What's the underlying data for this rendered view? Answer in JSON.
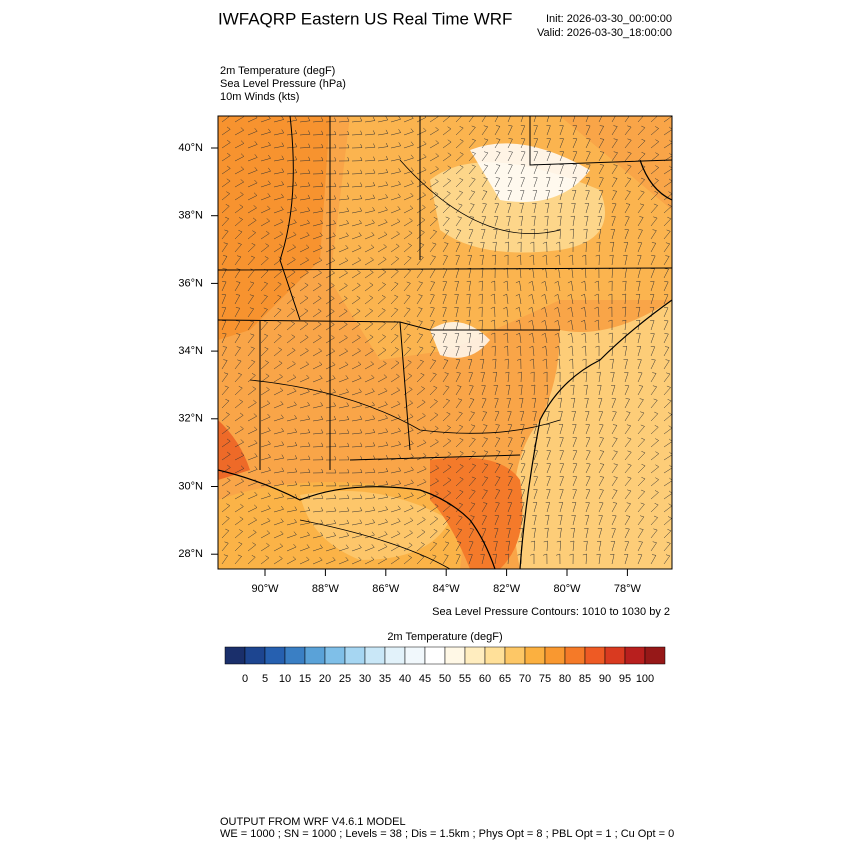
{
  "header": {
    "title": "IWFAQRP Eastern US Real Time WRF",
    "init": "Init: 2026-03-30_00:00:00",
    "valid": "Valid: 2026-03-30_18:00:00"
  },
  "fields": [
    "2m Temperature   (degF)",
    "Sea Level Pressure   (hPa)",
    "10m Winds   (kts)"
  ],
  "map": {
    "lat_labels": [
      "40°N",
      "38°N",
      "36°N",
      "34°N",
      "32°N",
      "30°N",
      "28°N"
    ],
    "lon_labels": [
      "90°W",
      "88°W",
      "86°W",
      "84°W",
      "82°W",
      "80°W",
      "78°W"
    ],
    "contour_note": "Sea Level Pressure Contours: 1010 to 1030 by 2"
  },
  "colorbar": {
    "title": "2m Temperature  (degF)",
    "colors": [
      "#1a2f6b",
      "#1d4590",
      "#2660b0",
      "#3a7fc4",
      "#5aa2d8",
      "#7fbfe8",
      "#a6d6f2",
      "#c9e7f7",
      "#e2f2fa",
      "#f1f8fc",
      "#ffffff",
      "#fff8e6",
      "#ffedbf",
      "#ffe099",
      "#fdc766",
      "#fbb040",
      "#f99830",
      "#f57a28",
      "#ee5a24",
      "#d93a20",
      "#b81f1e",
      "#961818"
    ],
    "labels": [
      0,
      5,
      10,
      15,
      20,
      25,
      30,
      35,
      40,
      45,
      50,
      55,
      60,
      65,
      70,
      75,
      80,
      85,
      90,
      95,
      100
    ]
  },
  "footer": [
    "OUTPUT FROM WRF V4.6.1 MODEL",
    "WE = 1000 ; SN = 1000 ; Levels = 38 ; Dis = 1.5km ; Phys Opt = 8 ; PBL Opt = 1 ; Cu Opt = 0"
  ]
}
